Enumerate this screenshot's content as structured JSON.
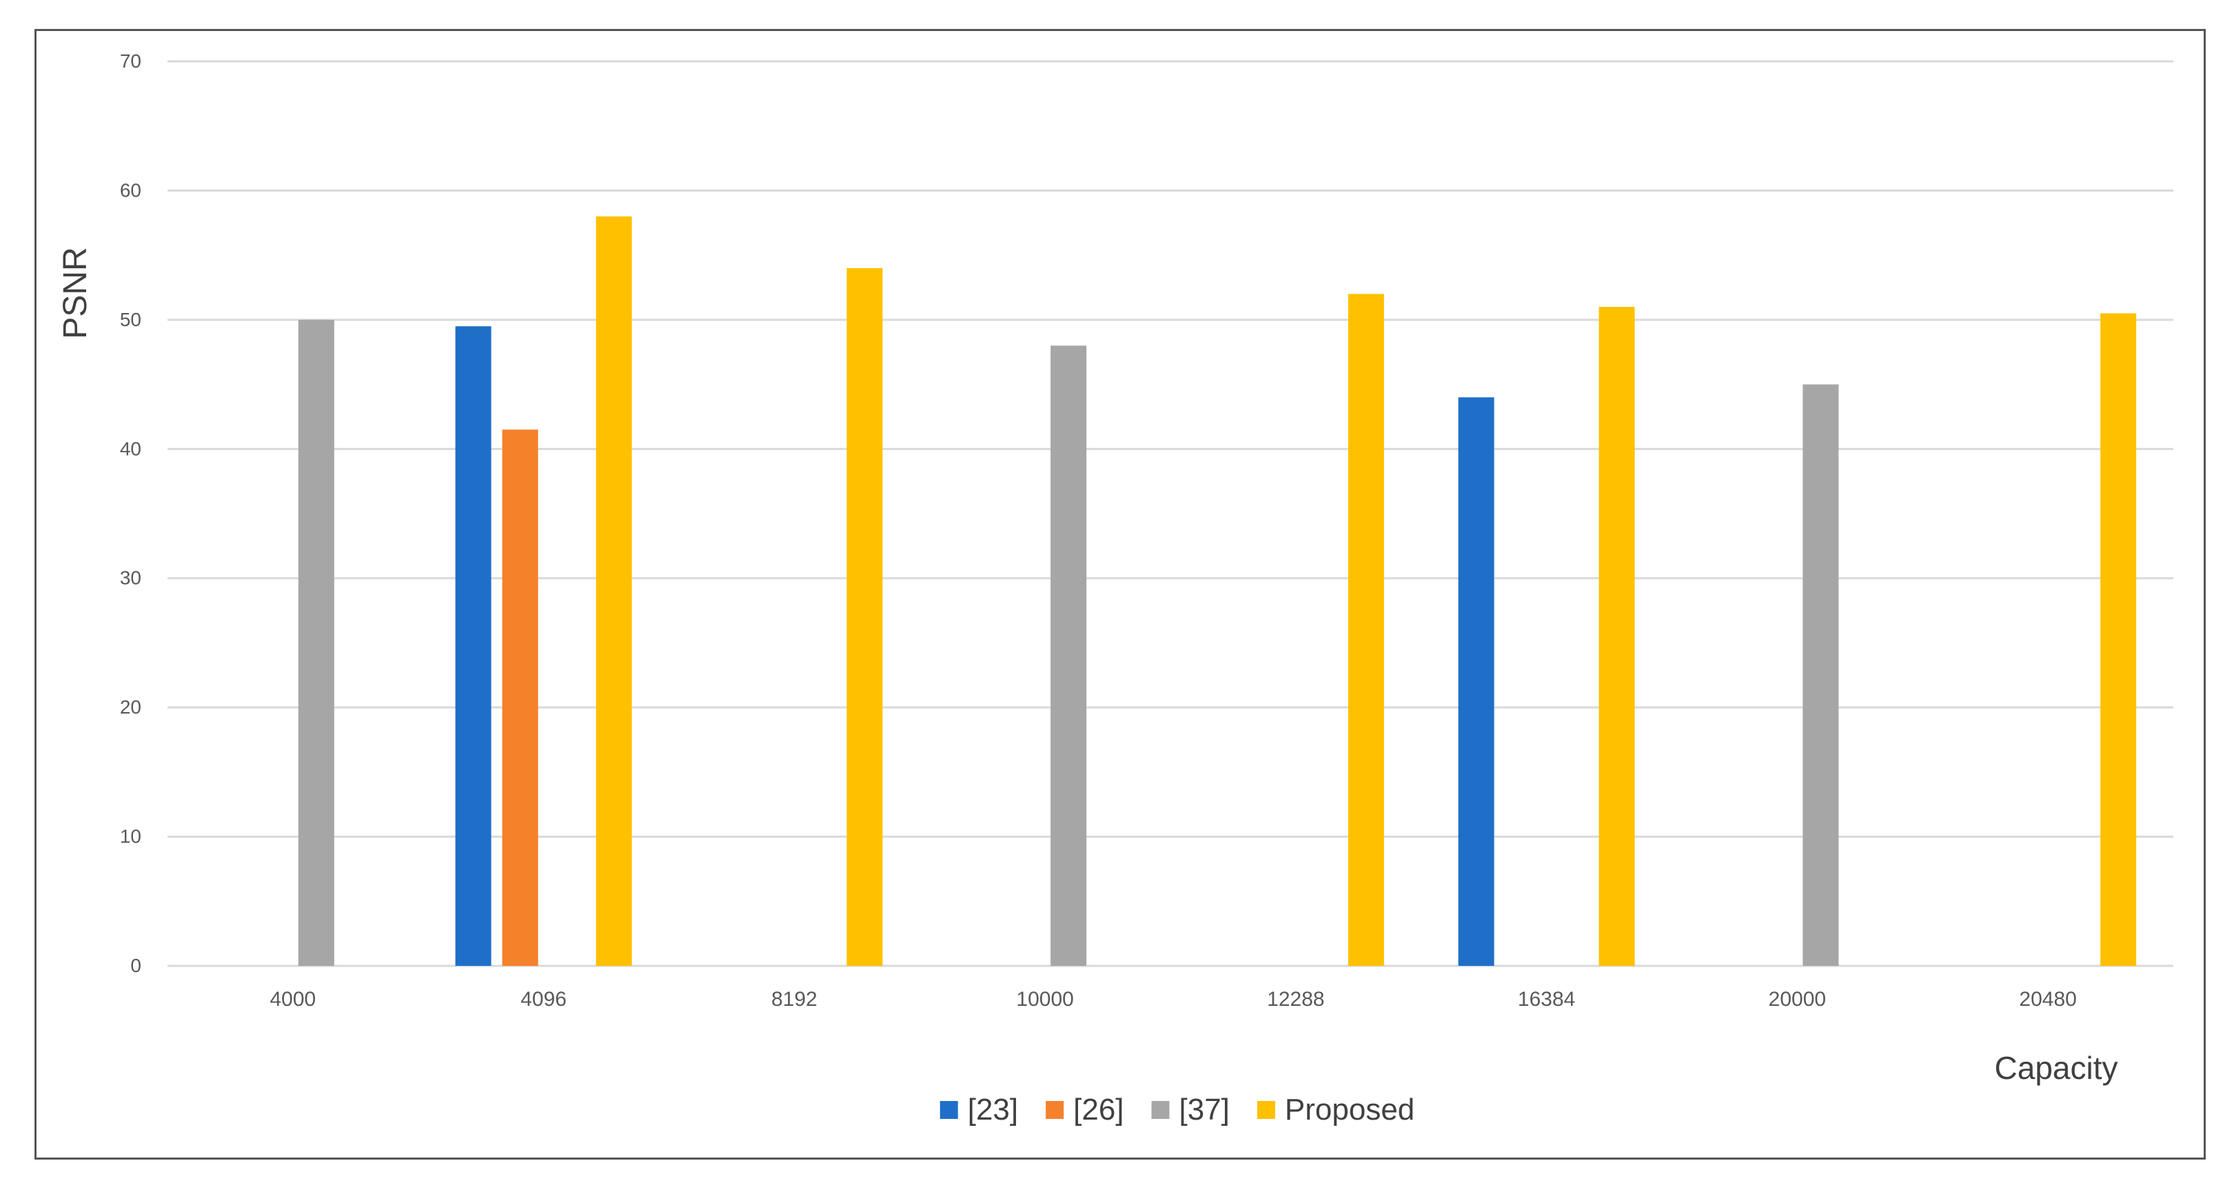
{
  "chart_data": {
    "type": "bar",
    "title": "",
    "xlabel": "Capacity",
    "ylabel": "PSNR",
    "ylim": [
      0,
      70
    ],
    "yticks": [
      0,
      10,
      20,
      30,
      40,
      50,
      60,
      70
    ],
    "grid": true,
    "legend_position": "bottom-center",
    "categories": [
      "4000",
      "4096",
      "8192",
      "10000",
      "12288",
      "16384",
      "20000",
      "20480"
    ],
    "series": [
      {
        "name": "[23]",
        "color": "#1f6fc8",
        "values": [
          null,
          49.5,
          null,
          null,
          null,
          44,
          null,
          null
        ]
      },
      {
        "name": "[26]",
        "color": "#f5812b",
        "values": [
          null,
          41.5,
          null,
          null,
          null,
          null,
          null,
          null
        ]
      },
      {
        "name": "[37]",
        "color": "#a6a6a6",
        "values": [
          50,
          null,
          null,
          48,
          null,
          null,
          45,
          null
        ]
      },
      {
        "name": "Proposed",
        "color": "#ffc000",
        "values": [
          null,
          58,
          54,
          null,
          52,
          51,
          null,
          50.5
        ]
      }
    ]
  }
}
